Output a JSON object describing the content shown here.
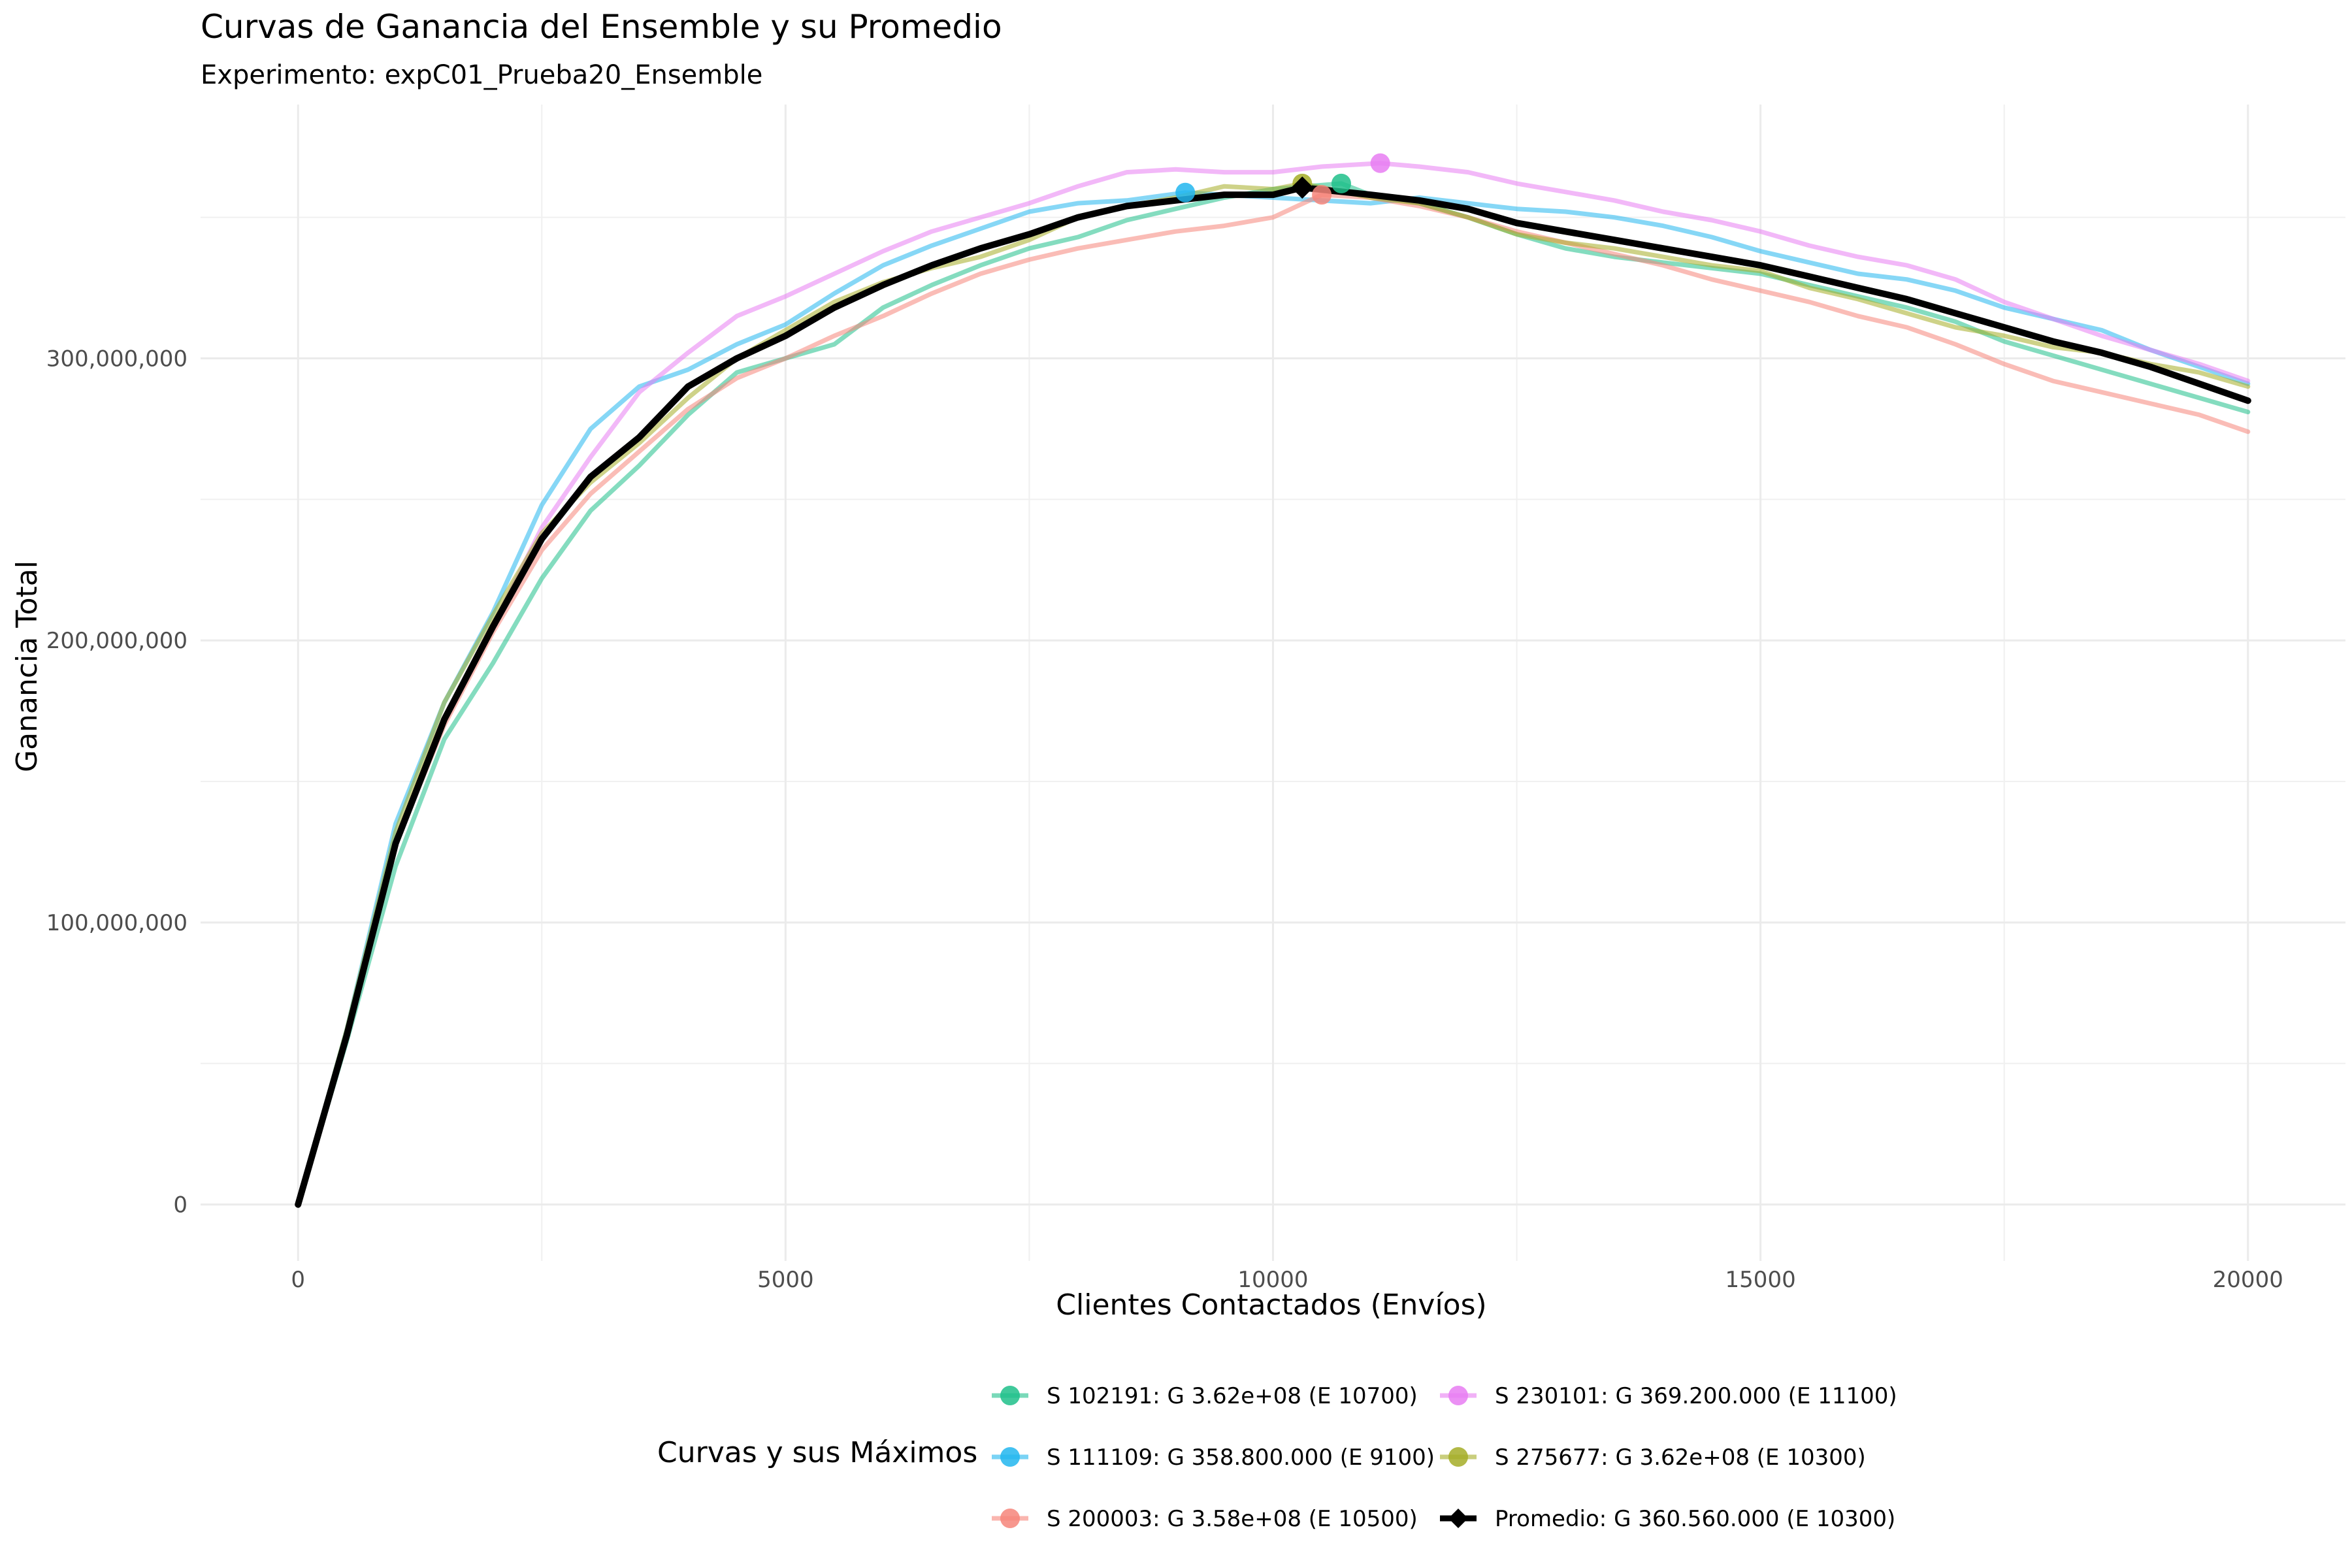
{
  "chart_data": {
    "type": "line",
    "title": "Curvas de Ganancia del Ensemble y su Promedio",
    "subtitle": "Experimento: expC01_Prueba20_Ensemble",
    "xlabel": "Clientes Contactados (Envíos)",
    "ylabel": "Ganancia Total",
    "xlim": [
      -1000,
      21000
    ],
    "ylim": [
      -20000000,
      390000000
    ],
    "x_ticks": [
      0,
      5000,
      10000,
      15000,
      20000
    ],
    "x_tick_labels": [
      "0",
      "5000",
      "10000",
      "15000",
      "20000"
    ],
    "y_ticks": [
      0,
      100000000,
      200000000,
      300000000
    ],
    "y_tick_labels": [
      "0",
      "100,000,000",
      "200,000,000",
      "300,000,000"
    ],
    "grid": true,
    "legend_title": "Curvas y sus Máximos",
    "legend_position": "bottom",
    "series": [
      {
        "name": "S 102191: G 3.62e+08 (E 10700)",
        "color": "#1FBF8A",
        "max": [
          10700,
          362000000
        ],
        "x": [
          0,
          500,
          1000,
          1500,
          2000,
          2500,
          3000,
          3500,
          4000,
          4500,
          5000,
          5500,
          6000,
          6500,
          7000,
          7500,
          8000,
          8500,
          9000,
          9500,
          10000,
          10700,
          11000,
          11500,
          12000,
          12500,
          13000,
          13500,
          14000,
          14500,
          15000,
          15500,
          16000,
          16500,
          17000,
          17500,
          18000,
          18500,
          19000,
          19500,
          20000
        ],
        "y": [
          0,
          58000000,
          120000000,
          165000000,
          192000000,
          222000000,
          246000000,
          262000000,
          280000000,
          295000000,
          300000000,
          305000000,
          318000000,
          326000000,
          333000000,
          339000000,
          343000000,
          349000000,
          353000000,
          357000000,
          360000000,
          362000000,
          358000000,
          355000000,
          350000000,
          344000000,
          339000000,
          336000000,
          334000000,
          332000000,
          330000000,
          326000000,
          322000000,
          318000000,
          313000000,
          306000000,
          301000000,
          296000000,
          291000000,
          286000000,
          281000000
        ]
      },
      {
        "name": "S 111109: G 358.800.000 (E 9100)",
        "color": "#22B6EE",
        "max": [
          9100,
          358800000
        ],
        "x": [
          0,
          500,
          1000,
          1500,
          2000,
          2500,
          3000,
          3500,
          4000,
          4500,
          5000,
          5500,
          6000,
          6500,
          7000,
          7500,
          8000,
          8500,
          9100,
          9500,
          10000,
          10500,
          11000,
          11500,
          12000,
          12500,
          13000,
          13500,
          14000,
          14500,
          15000,
          15500,
          16000,
          16500,
          17000,
          17500,
          18000,
          18500,
          19000,
          19500,
          20000
        ],
        "y": [
          0,
          62000000,
          135000000,
          178000000,
          210000000,
          248000000,
          275000000,
          290000000,
          296000000,
          305000000,
          312000000,
          323000000,
          333000000,
          340000000,
          346000000,
          352000000,
          355000000,
          356000000,
          358800000,
          358000000,
          357000000,
          356000000,
          355000000,
          357000000,
          355000000,
          353000000,
          352000000,
          350000000,
          347000000,
          343000000,
          338000000,
          334000000,
          330000000,
          328000000,
          324000000,
          318000000,
          314000000,
          310000000,
          303000000,
          297000000,
          291000000
        ]
      },
      {
        "name": "S 200003: G 3.58e+08 (E 10500)",
        "color": "#F6857A",
        "max": [
          10500,
          358000000
        ],
        "x": [
          0,
          500,
          1000,
          1500,
          2000,
          2500,
          3000,
          3500,
          4000,
          4500,
          5000,
          5500,
          6000,
          6500,
          7000,
          7500,
          8000,
          8500,
          9000,
          9500,
          10000,
          10500,
          11000,
          11500,
          12000,
          12500,
          13000,
          13500,
          14000,
          14500,
          15000,
          15500,
          16000,
          16500,
          17000,
          17500,
          18000,
          18500,
          19000,
          19500,
          20000
        ],
        "y": [
          0,
          60000000,
          128000000,
          170000000,
          203000000,
          232000000,
          252000000,
          267000000,
          282000000,
          293000000,
          300000000,
          308000000,
          315000000,
          323000000,
          330000000,
          335000000,
          339000000,
          342000000,
          345000000,
          347000000,
          350000000,
          358000000,
          357000000,
          354000000,
          350000000,
          345000000,
          341000000,
          337000000,
          333000000,
          328000000,
          324000000,
          320000000,
          315000000,
          311000000,
          305000000,
          298000000,
          292000000,
          288000000,
          284000000,
          280000000,
          274000000
        ]
      },
      {
        "name": "S 230101: G 369.200.000 (E 11100)",
        "color": "#E87DF2",
        "max": [
          11100,
          369200000
        ],
        "x": [
          0,
          500,
          1000,
          1500,
          2000,
          2500,
          3000,
          3500,
          4000,
          4500,
          5000,
          5500,
          6000,
          6500,
          7000,
          7500,
          8000,
          8500,
          9000,
          9500,
          10000,
          10500,
          11100,
          11500,
          12000,
          12500,
          13000,
          13500,
          14000,
          14500,
          15000,
          15500,
          16000,
          16500,
          17000,
          17500,
          18000,
          18500,
          19000,
          19500,
          20000
        ],
        "y": [
          0,
          60000000,
          128000000,
          172000000,
          205000000,
          240000000,
          265000000,
          288000000,
          302000000,
          315000000,
          322000000,
          330000000,
          338000000,
          345000000,
          350000000,
          355000000,
          361000000,
          366000000,
          367000000,
          366000000,
          366000000,
          368000000,
          369200000,
          368000000,
          366000000,
          362000000,
          359000000,
          356000000,
          352000000,
          349000000,
          345000000,
          340000000,
          336000000,
          333000000,
          328000000,
          320000000,
          314000000,
          308000000,
          303000000,
          298000000,
          292000000
        ]
      },
      {
        "name": "S 275677: G 3.62e+08 (E 10300)",
        "color": "#A5AD27",
        "max": [
          10300,
          362000000
        ],
        "x": [
          0,
          500,
          1000,
          1500,
          2000,
          2500,
          3000,
          3500,
          4000,
          4500,
          5000,
          5500,
          6000,
          6500,
          7000,
          7500,
          8000,
          8500,
          9000,
          9500,
          10000,
          10300,
          11000,
          11500,
          12000,
          12500,
          13000,
          13500,
          14000,
          14500,
          15000,
          15500,
          16000,
          16500,
          17000,
          17500,
          18000,
          18500,
          19000,
          19500,
          20000
        ],
        "y": [
          0,
          62000000,
          132000000,
          178000000,
          209000000,
          238000000,
          256000000,
          270000000,
          286000000,
          300000000,
          310000000,
          320000000,
          327000000,
          332000000,
          336000000,
          342000000,
          350000000,
          354000000,
          357000000,
          361000000,
          360000000,
          362000000,
          357000000,
          355000000,
          350000000,
          344000000,
          341000000,
          339000000,
          336000000,
          333000000,
          331000000,
          325000000,
          321000000,
          316000000,
          311000000,
          308000000,
          304000000,
          302000000,
          298000000,
          295000000,
          290000000
        ]
      },
      {
        "name": "Promedio: G 360.560.000 (E 10300)",
        "color": "#000000",
        "max": [
          10300,
          360560000
        ],
        "x": [
          0,
          500,
          1000,
          1500,
          2000,
          2500,
          3000,
          3500,
          4000,
          4500,
          5000,
          5500,
          6000,
          6500,
          7000,
          7500,
          8000,
          8500,
          9000,
          9500,
          10000,
          10300,
          11000,
          11500,
          12000,
          12500,
          13000,
          13500,
          14000,
          14500,
          15000,
          15500,
          16000,
          16500,
          17000,
          17500,
          18000,
          18500,
          19000,
          19500,
          20000
        ],
        "y": [
          0,
          60000000,
          128000000,
          172000000,
          205000000,
          236000000,
          258000000,
          272000000,
          290000000,
          300000000,
          308000000,
          318000000,
          326000000,
          333000000,
          339000000,
          344000000,
          350000000,
          354000000,
          356000000,
          358000000,
          358000000,
          360560000,
          358000000,
          356000000,
          353000000,
          348000000,
          345000000,
          342000000,
          339000000,
          336000000,
          333000000,
          329000000,
          325000000,
          321000000,
          316000000,
          311000000,
          306000000,
          302000000,
          297000000,
          291000000,
          285000000
        ]
      }
    ]
  }
}
